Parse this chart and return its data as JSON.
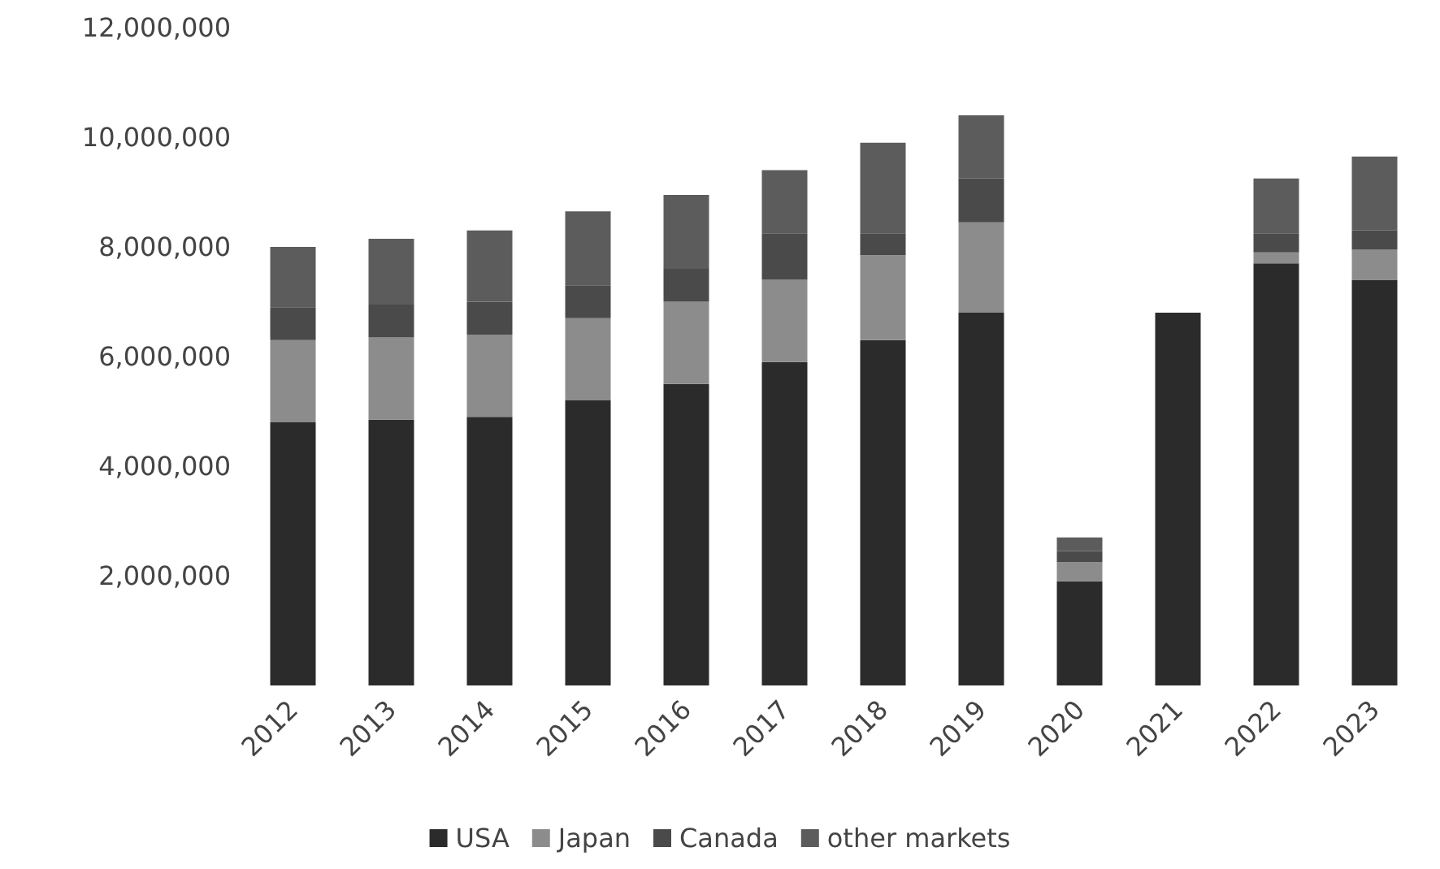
{
  "chart_data": {
    "type": "bar",
    "stacked": true,
    "categories": [
      "2012",
      "2013",
      "2014",
      "2015",
      "2016",
      "2017",
      "2018",
      "2019",
      "2020",
      "2021",
      "2022",
      "2023"
    ],
    "series": [
      {
        "name": "USA",
        "color": "#2b2b2b",
        "values": [
          4800000,
          4850000,
          4900000,
          5200000,
          5500000,
          5900000,
          6300000,
          6800000,
          1900000,
          6800000,
          7700000,
          7400000
        ]
      },
      {
        "name": "Japan",
        "color": "#8c8c8c",
        "values": [
          1500000,
          1500000,
          1500000,
          1500000,
          1500000,
          1500000,
          1550000,
          1650000,
          350000,
          0,
          200000,
          550000
        ]
      },
      {
        "name": "Canada",
        "color": "#4a4a4a",
        "values": [
          600000,
          600000,
          600000,
          600000,
          600000,
          850000,
          400000,
          800000,
          200000,
          0,
          350000,
          350000
        ]
      },
      {
        "name": "other markets",
        "color": "#5c5c5c",
        "values": [
          1100000,
          1200000,
          1300000,
          1350000,
          1350000,
          1150000,
          1650000,
          1150000,
          250000,
          0,
          1000000,
          1350000
        ]
      }
    ],
    "ylim": [
      0,
      12000000
    ],
    "yticks": [
      {
        "value": 2000000,
        "label": "2,000,000"
      },
      {
        "value": 4000000,
        "label": "4,000,000"
      },
      {
        "value": 6000000,
        "label": "6,000,000"
      },
      {
        "value": 8000000,
        "label": "8,000,000"
      },
      {
        "value": 10000000,
        "label": "10,000,000"
      },
      {
        "value": 12000000,
        "label": "12,000,000"
      }
    ],
    "grid": false,
    "legend": "bottom"
  }
}
